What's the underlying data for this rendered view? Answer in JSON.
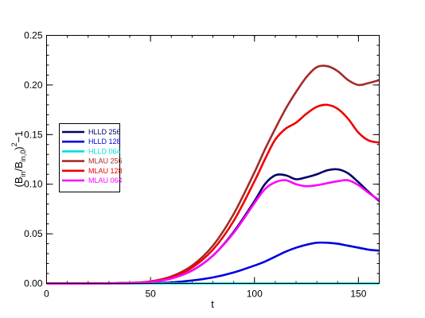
{
  "chart_data": {
    "type": "line",
    "xlabel": "t",
    "ylabel": {
      "base": "(B",
      "sub1": "in",
      "mid": "/B",
      "sub2": "in,0",
      "close": ")",
      "sup": "2",
      "tail": "−1"
    },
    "xlim": [
      0,
      160
    ],
    "ylim": [
      0,
      0.25
    ],
    "x_ticks": [
      0,
      50,
      100,
      150
    ],
    "x_tick_labels": [
      "0",
      "50",
      "100",
      "150"
    ],
    "y_ticks": [
      0,
      0.05,
      0.1,
      0.15,
      0.2,
      0.25
    ],
    "y_tick_labels": [
      "0.00",
      "0.05",
      "0.10",
      "0.15",
      "0.20",
      "0.25"
    ],
    "x_minor_step": 10,
    "y_minor_step": 0.01,
    "grid": false,
    "legend_position": "left",
    "x": [
      0,
      20,
      40,
      50,
      60,
      70,
      80,
      90,
      100,
      105,
      110,
      115,
      120,
      125,
      130,
      135,
      140,
      145,
      150,
      155,
      160
    ],
    "series": [
      {
        "name": "HLLD 256",
        "color": "#000066",
        "values": [
          0,
          0,
          0.0005,
          0.0015,
          0.005,
          0.013,
          0.028,
          0.052,
          0.083,
          0.1,
          0.109,
          0.109,
          0.105,
          0.107,
          0.11,
          0.114,
          0.115,
          0.111,
          0.102,
          0.092,
          0.083
        ]
      },
      {
        "name": "HLLD 128",
        "color": "#0000dd",
        "values": [
          0,
          0,
          0,
          0.0003,
          0.001,
          0.003,
          0.006,
          0.011,
          0.018,
          0.022,
          0.027,
          0.032,
          0.036,
          0.039,
          0.041,
          0.041,
          0.04,
          0.038,
          0.036,
          0.034,
          0.033
        ]
      },
      {
        "name": "HLLD 064",
        "color": "#00dddd",
        "values": [
          0,
          0,
          0,
          0,
          0,
          0,
          0,
          0,
          0,
          0,
          0,
          0,
          0,
          0,
          0,
          0,
          0,
          0,
          0,
          0,
          0
        ]
      },
      {
        "name": "MLAU 256",
        "color": "#a52a2a",
        "values": [
          0,
          0,
          0.0005,
          0.002,
          0.007,
          0.018,
          0.038,
          0.07,
          0.112,
          0.135,
          0.156,
          0.176,
          0.193,
          0.208,
          0.218,
          0.219,
          0.214,
          0.205,
          0.2,
          0.202,
          0.205
        ]
      },
      {
        "name": "MLAU 128",
        "color": "#ee0000",
        "values": [
          0,
          0,
          0.0005,
          0.002,
          0.006,
          0.016,
          0.034,
          0.063,
          0.103,
          0.125,
          0.145,
          0.156,
          0.162,
          0.171,
          0.178,
          0.18,
          0.176,
          0.166,
          0.152,
          0.144,
          0.142
        ]
      },
      {
        "name": "MLAU 064",
        "color": "#ff00ff",
        "values": [
          0,
          0,
          0.0005,
          0.0015,
          0.005,
          0.013,
          0.028,
          0.051,
          0.081,
          0.095,
          0.102,
          0.104,
          0.1,
          0.098,
          0.099,
          0.101,
          0.103,
          0.104,
          0.099,
          0.091,
          0.084
        ]
      }
    ]
  }
}
